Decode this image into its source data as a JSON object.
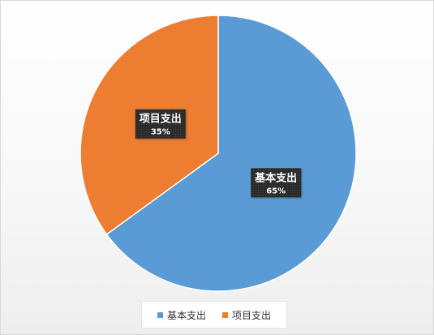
{
  "chart_data": {
    "type": "pie",
    "title": "",
    "slices": [
      {
        "label": "基本支出",
        "value": 65,
        "value_label": "65%",
        "color": "#5b9bd5"
      },
      {
        "label": "项目支出",
        "value": 35,
        "value_label": "35%",
        "color": "#ed7d31"
      }
    ],
    "legend": {
      "placement": "bottom",
      "items": [
        "基本支出",
        "项目支出"
      ]
    },
    "start_angle": "12 o'clock",
    "direction": "clockwise"
  }
}
